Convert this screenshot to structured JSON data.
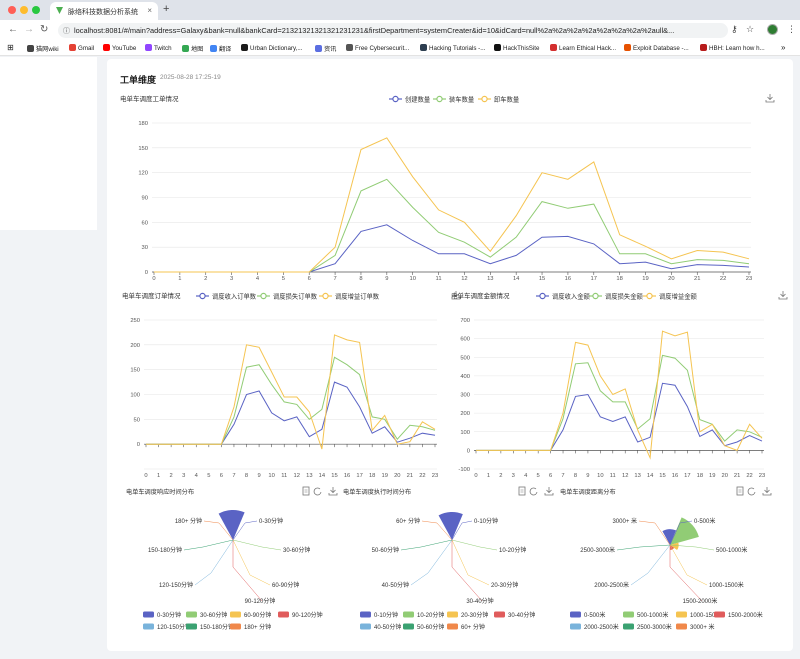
{
  "browser": {
    "tab_title": "脉络科技数据分析系统",
    "url": "localhost:8081/#/main?address=Galaxy&bank=null&bankCard=21321321321321231231&firstDepartment=systemCreater&id=10&idCard=null%2a%2a%2a%2a%2a%2a%2a%2aull&...",
    "bookmarks": [
      "猫网wiki",
      "Gmail",
      "YouTube",
      "Twitch",
      "地图",
      "翻译",
      "Urban Dictionary,...",
      "资讯",
      "Free Cybersecurit...",
      "Hacking Tutorials -...",
      "HackThisSite",
      "Learn Ethical Hack...",
      "Exploit Database -...",
      "HBH: Learn how h..."
    ]
  },
  "page": {
    "title": "工单维度",
    "timestamp": "2025-08-28 17:25-19"
  },
  "colors": {
    "blue": "#5a63c4",
    "green": "#91cc75",
    "yellow": "#f5c451"
  },
  "charts": {
    "workorders": {
      "title": "电单车调度工单情况",
      "legend": [
        "创建数量",
        "装车数量",
        "卸车数量"
      ],
      "chart_data": {
        "type": "line",
        "x": [
          0,
          1,
          2,
          3,
          4,
          5,
          6,
          7,
          8,
          9,
          10,
          11,
          12,
          13,
          14,
          15,
          16,
          17,
          18,
          19,
          20,
          21,
          22,
          23
        ],
        "ylim": [
          0,
          180
        ],
        "yticks": [
          0,
          30,
          60,
          90,
          120,
          150,
          180
        ],
        "series": [
          {
            "name": "创建数量",
            "values": [
              0,
              0,
              0,
              0,
              0,
              0,
              0,
              10,
              49,
              57,
              38,
              22,
              22,
              10,
              20,
              42,
              43,
              34,
              10,
              12,
              4,
              9,
              8,
              6
            ]
          },
          {
            "name": "装车数量",
            "values": [
              0,
              0,
              0,
              0,
              0,
              0,
              0,
              20,
              98,
              112,
              78,
              48,
              36,
              18,
              42,
              85,
              77,
              82,
              22,
              22,
              10,
              15,
              14,
              10
            ]
          },
          {
            "name": "卸车数量",
            "values": [
              0,
              0,
              0,
              0,
              0,
              0,
              0,
              30,
              148,
              162,
              115,
              75,
              60,
              25,
              68,
              120,
              112,
              133,
              45,
              31,
              16,
              26,
              24,
              16
            ]
          }
        ]
      }
    },
    "orders": {
      "title": "电单车调度订单情况",
      "legend": [
        "调度收入订单数",
        "调度损失订单数",
        "调度增益订单数"
      ],
      "chart_data": {
        "type": "line",
        "x": [
          0,
          1,
          2,
          3,
          4,
          5,
          6,
          7,
          8,
          9,
          10,
          11,
          12,
          13,
          14,
          15,
          16,
          17,
          18,
          19,
          20,
          21,
          22,
          23
        ],
        "ylim": [
          -50,
          250
        ],
        "yticks": [
          0,
          50,
          100,
          150,
          200,
          250
        ],
        "series": [
          {
            "name": "调度收入订单数",
            "values": [
              0,
              0,
              0,
              0,
              0,
              0,
              0,
              40,
              100,
              107,
              63,
              47,
              55,
              15,
              30,
              125,
              115,
              75,
              22,
              35,
              4,
              12,
              22,
              18
            ]
          },
          {
            "name": "调度损失订单数",
            "values": [
              0,
              0,
              0,
              0,
              0,
              0,
              0,
              55,
              155,
              160,
              120,
              85,
              80,
              50,
              70,
              175,
              160,
              140,
              55,
              50,
              10,
              38,
              35,
              28
            ]
          },
          {
            "name": "调度增益订单数",
            "values": [
              0,
              0,
              0,
              0,
              0,
              0,
              0,
              75,
              200,
              195,
              145,
              95,
              95,
              65,
              -10,
              220,
              210,
              205,
              28,
              58,
              0,
              5,
              45,
              30
            ]
          }
        ]
      }
    },
    "amount": {
      "title": "电单车调度金额情况",
      "legend": [
        "调度收入金额",
        "调度损失金额",
        "调度增益金额"
      ],
      "chart_data": {
        "type": "line",
        "x": [
          0,
          1,
          2,
          3,
          4,
          5,
          6,
          7,
          8,
          9,
          10,
          11,
          12,
          13,
          14,
          15,
          16,
          17,
          18,
          19,
          20,
          21,
          22,
          23
        ],
        "ylim": [
          -100,
          700
        ],
        "yticks": [
          -100,
          0,
          100,
          200,
          300,
          400,
          500,
          600,
          700
        ],
        "series": [
          {
            "name": "调度收入金额",
            "values": [
              0,
              0,
              0,
              0,
              0,
              0,
              0,
              110,
              290,
              300,
              180,
              155,
              180,
              45,
              70,
              360,
              350,
              235,
              75,
              110,
              25,
              45,
              80,
              50
            ]
          },
          {
            "name": "调度损失金额",
            "values": [
              0,
              0,
              0,
              0,
              0,
              0,
              0,
              170,
              465,
              470,
              320,
              260,
              260,
              115,
              170,
              510,
              495,
              430,
              165,
              140,
              50,
              110,
              100,
              70
            ]
          },
          {
            "name": "调度增益金额",
            "values": [
              0,
              0,
              0,
              0,
              0,
              0,
              0,
              200,
              580,
              565,
              400,
              300,
              330,
              110,
              -40,
              640,
              615,
              635,
              100,
              140,
              25,
              0,
              140,
              65
            ]
          }
        ]
      }
    },
    "response": {
      "title": "电单车调度响应时间分布",
      "chart_data": {
        "type": "pie",
        "categories": [
          "0-30分钟",
          "30-60分钟",
          "60-90分钟",
          "90-120分钟",
          "120-150分钟",
          "150-180分钟",
          "180+ 分钟"
        ],
        "values": [
          100,
          0,
          0,
          0,
          0,
          0,
          0
        ]
      }
    },
    "execution": {
      "title": "电单车调度执行时间分布",
      "chart_data": {
        "type": "pie",
        "categories": [
          "0-10分钟",
          "10-20分钟",
          "20-30分钟",
          "30-40分钟",
          "40-50分钟",
          "50-60分钟",
          "60+ 分钟"
        ],
        "values": [
          100,
          0,
          0,
          0,
          0,
          0,
          0
        ]
      }
    },
    "distance": {
      "title": "电单车调度距离分布",
      "chart_data": {
        "type": "pie",
        "categories": [
          "0-500米",
          "500-1000米",
          "1000-1500米",
          "1500-2000米",
          "2000-2500米",
          "2500-3000米",
          "3000+ 米"
        ],
        "values": [
          20,
          72,
          6,
          2,
          0,
          0,
          0
        ]
      }
    }
  },
  "pie_colors": [
    "#5a63c4",
    "#91cc75",
    "#f5c451",
    "#e05c5c",
    "#79b3db",
    "#3ba272",
    "#f0884a"
  ]
}
